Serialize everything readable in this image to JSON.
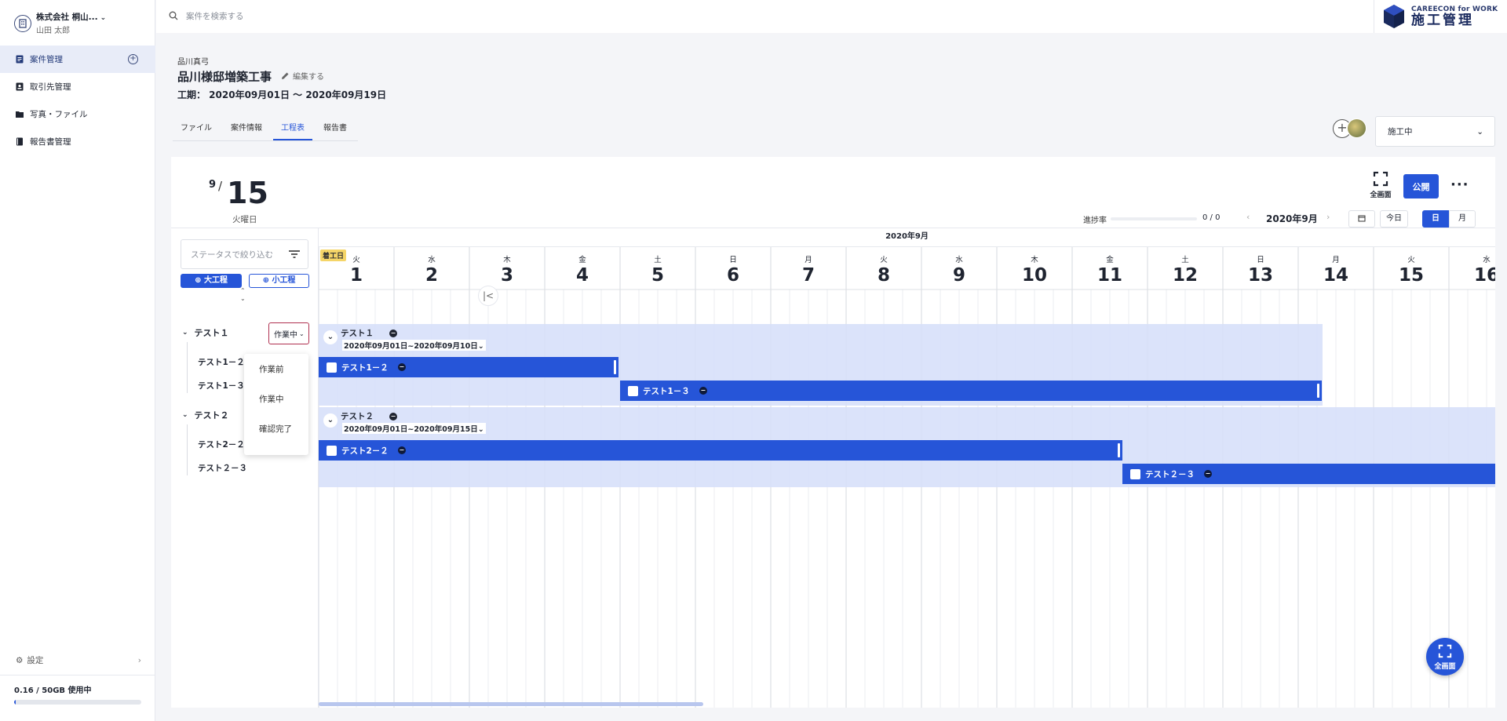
{
  "sidebar": {
    "company_name": "株式会社 桐山...",
    "user_name": "山田 太郎",
    "items": [
      {
        "label": "案件管理"
      },
      {
        "label": "取引先管理"
      },
      {
        "label": "写真・ファイル"
      },
      {
        "label": "報告書管理"
      }
    ],
    "settings_label": "設定",
    "usage_text": "0.16 / 50GB 使用中",
    "usage_fraction": 0.0032
  },
  "topbar": {
    "search_placeholder": "案件を検索する",
    "brand_top": "CAREECON for WORK",
    "brand_bottom": "施工管理"
  },
  "header": {
    "breadcrumb": "品川真弓",
    "title": "品川様邸増築工事",
    "edit_label": "編集する",
    "period": "工期： 2020年09月01日 〜 2020年09月19日",
    "tabs": [
      {
        "label": "ファイル"
      },
      {
        "label": "案件情報"
      },
      {
        "label": "工程表"
      },
      {
        "label": "報告書"
      }
    ],
    "status_value": "施工中"
  },
  "schedule": {
    "date_month": "9",
    "date_slash": "/",
    "date_day": "15",
    "date_weekday": "火曜日",
    "fullscreen_label": "全画面",
    "publish_label": "公開",
    "progress_label": "進捗率",
    "progress_value": "0 / 0",
    "month_label": "2020年9月",
    "today_label": "今日",
    "view_day_label": "日",
    "view_month_label": "月",
    "month_header": "2020年9月",
    "start_badge": "着工日",
    "days": [
      {
        "wd": "火",
        "dn": "1"
      },
      {
        "wd": "水",
        "dn": "2"
      },
      {
        "wd": "木",
        "dn": "3"
      },
      {
        "wd": "金",
        "dn": "4"
      },
      {
        "wd": "土",
        "dn": "5"
      },
      {
        "wd": "日",
        "dn": "6"
      },
      {
        "wd": "月",
        "dn": "7"
      },
      {
        "wd": "火",
        "dn": "8"
      },
      {
        "wd": "水",
        "dn": "9"
      },
      {
        "wd": "木",
        "dn": "10"
      },
      {
        "wd": "金",
        "dn": "11"
      },
      {
        "wd": "土",
        "dn": "12"
      },
      {
        "wd": "日",
        "dn": "13"
      },
      {
        "wd": "月",
        "dn": "14"
      },
      {
        "wd": "火",
        "dn": "15"
      },
      {
        "wd": "水",
        "dn": "16"
      }
    ]
  },
  "leftpanel": {
    "filter_placeholder": "ステータスで絞り込む",
    "add_big_label": "大工程",
    "add_small_label": "小工程",
    "group1": "テスト１",
    "group1_status": "作業中",
    "sub1_2": "テスト1－２",
    "sub1_3": "テスト1－３",
    "group2": "テスト２",
    "sub2_2": "テスト2－２",
    "sub2_3": "テスト２－３",
    "dropdown_options": [
      {
        "label": "作業前"
      },
      {
        "label": "作業中"
      },
      {
        "label": "確認完了"
      }
    ]
  },
  "gantt": {
    "group1_title": "テスト１",
    "group1_range": "2020年09月01日~2020年09月10日",
    "bar1_2": "テスト1－２",
    "bar1_3": "テスト1－３",
    "group2_title": "テスト２",
    "group2_range": "2020年09月01日~2020年09月15日",
    "bar2_2": "テスト2－２",
    "bar2_3": "テスト２－３"
  },
  "fab_label": "全画面",
  "colors": {
    "accent": "#2655d8",
    "band": "#d7e0fa",
    "badge": "#f5d568"
  }
}
